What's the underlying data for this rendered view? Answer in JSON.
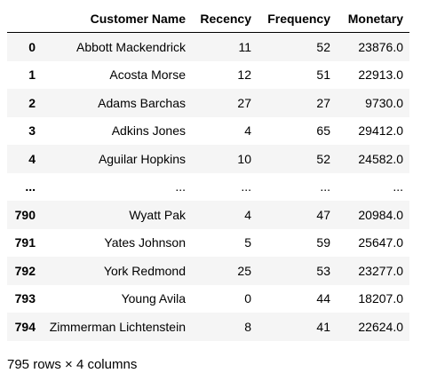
{
  "table": {
    "columns": [
      "",
      "Customer Name",
      "Recency",
      "Frequency",
      "Monetary"
    ],
    "rows": [
      [
        "0",
        "Abbott Mackendrick",
        "11",
        "52",
        "23876.0"
      ],
      [
        "1",
        "Acosta Morse",
        "12",
        "51",
        "22913.0"
      ],
      [
        "2",
        "Adams Barchas",
        "27",
        "27",
        "9730.0"
      ],
      [
        "3",
        "Adkins Jones",
        "4",
        "65",
        "29412.0"
      ],
      [
        "4",
        "Aguilar Hopkins",
        "10",
        "52",
        "24582.0"
      ],
      [
        "...",
        "...",
        "...",
        "...",
        "..."
      ],
      [
        "790",
        "Wyatt Pak",
        "4",
        "47",
        "20984.0"
      ],
      [
        "791",
        "Yates Johnson",
        "5",
        "59",
        "25647.0"
      ],
      [
        "792",
        "York Redmond",
        "25",
        "53",
        "23277.0"
      ],
      [
        "793",
        "Young Avila",
        "0",
        "44",
        "18207.0"
      ],
      [
        "794",
        "Zimmerman Lichtenstein",
        "8",
        "41",
        "22624.0"
      ]
    ]
  },
  "shape_text": "795 rows × 4 columns"
}
